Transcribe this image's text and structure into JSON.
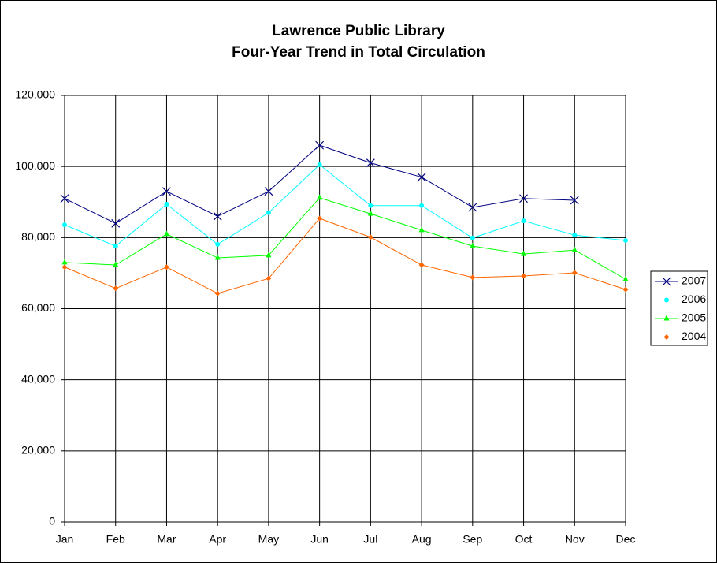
{
  "chart_data": {
    "type": "line",
    "title": "Lawrence Public Library",
    "subtitle": "Four-Year Trend in Total Circulation",
    "categories": [
      "Jan",
      "Feb",
      "Mar",
      "Apr",
      "May",
      "Jun",
      "Jul",
      "Aug",
      "Sep",
      "Oct",
      "Nov",
      "Dec"
    ],
    "series": [
      {
        "name": "2007",
        "color": "#000080",
        "marker": "x",
        "values": [
          91000,
          84000,
          93000,
          86000,
          93000,
          106000,
          101000,
          97000,
          88500,
          91000,
          90500,
          null
        ]
      },
      {
        "name": "2006",
        "color": "#00ffff",
        "marker": "circle",
        "values": [
          83600,
          77600,
          89400,
          78100,
          87000,
          100500,
          89000,
          89000,
          79900,
          84700,
          80700,
          79200
        ]
      },
      {
        "name": "2005",
        "color": "#00ff00",
        "marker": "triangle",
        "values": [
          73000,
          72300,
          81000,
          74300,
          75000,
          91200,
          86700,
          82100,
          77600,
          75400,
          76500,
          68300
        ]
      },
      {
        "name": "2004",
        "color": "#ff6600",
        "marker": "diamond",
        "values": [
          71700,
          65700,
          71700,
          64300,
          68500,
          85400,
          80100,
          72300,
          68800,
          69200,
          70100,
          65400
        ]
      }
    ],
    "ylim": [
      0,
      120000
    ],
    "yticks": [
      0,
      {
        "value": 20000,
        "label": "20,000"
      },
      {
        "value": 40000,
        "label": "40,000"
      },
      {
        "value": 60000,
        "label": "60,000"
      },
      {
        "value": 80000,
        "label": "80,000"
      },
      {
        "value": 100000,
        "label": "100,000"
      },
      {
        "value": 120000,
        "label": "120,000"
      }
    ],
    "grid": true,
    "legend": "right"
  }
}
